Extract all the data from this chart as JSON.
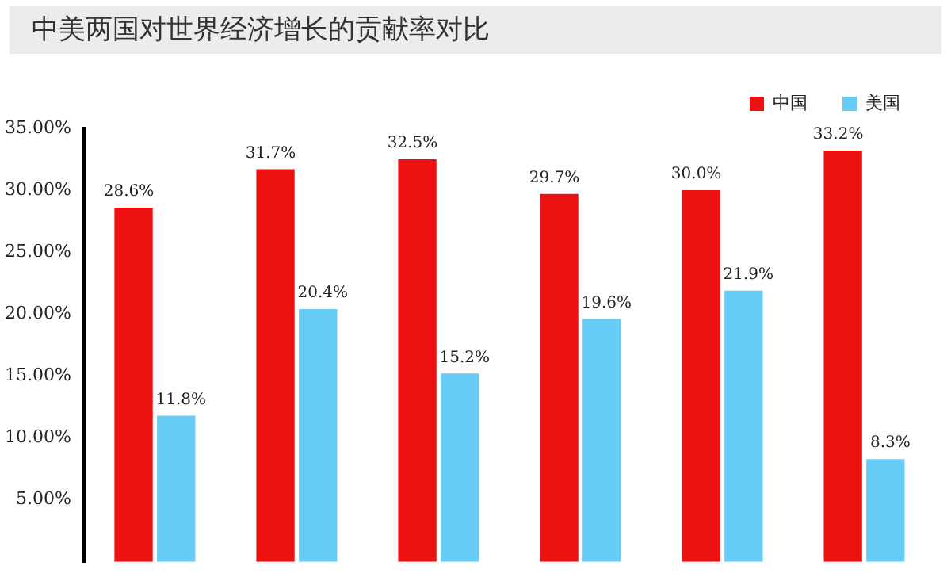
{
  "chart_data": {
    "type": "bar",
    "title": "中美两国对世界经济增长的贡献率对比",
    "categories": [
      null,
      null,
      null,
      null,
      null,
      null
    ],
    "series": [
      {
        "name": "中国",
        "color": "#ee1111",
        "values": [
          28.6,
          31.7,
          32.5,
          29.7,
          30.0,
          33.2
        ],
        "value_labels": [
          "28.6%",
          "31.7%",
          "32.5%",
          "29.7%",
          "30.0%",
          "33.2%"
        ]
      },
      {
        "name": "美国",
        "color": "#66ccf5",
        "values": [
          11.8,
          20.4,
          15.2,
          19.6,
          21.9,
          8.3
        ],
        "value_labels": [
          "11.8%",
          "20.4%",
          "15.2%",
          "19.6%",
          "21.9%",
          "8.3%"
        ]
      }
    ],
    "ylim": [
      0,
      35
    ],
    "yticks": [
      {
        "value": 5,
        "label": "5.00%"
      },
      {
        "value": 10,
        "label": "10.00%"
      },
      {
        "value": 15,
        "label": "15.00%"
      },
      {
        "value": 20,
        "label": "20.00%"
      },
      {
        "value": 25,
        "label": "25.00%"
      },
      {
        "value": 30,
        "label": "30.00%"
      },
      {
        "value": 35,
        "label": "35.00%"
      }
    ],
    "tick_labels": "y",
    "grid": false,
    "legend": "top right"
  }
}
